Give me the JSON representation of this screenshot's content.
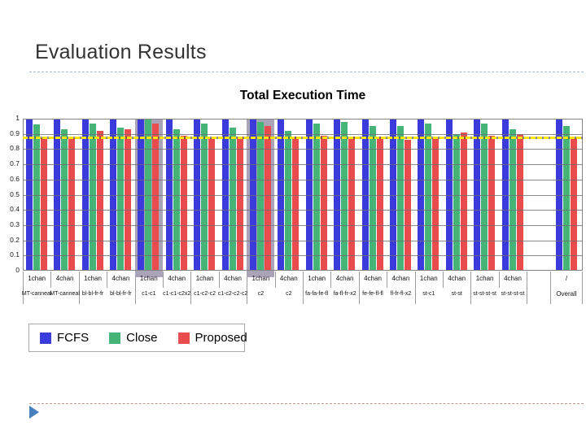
{
  "slide": {
    "title": "Evaluation Results"
  },
  "decor": {
    "top_divider_color": "#a3b8ca",
    "bottom_divider_color": "#bc9591",
    "arrow_color": "#4a7fbe"
  },
  "chart_data": {
    "type": "bar",
    "title": "Total Execution Time",
    "xlabel": "",
    "ylabel": "",
    "ylim": [
      0,
      1
    ],
    "grid": true,
    "legend_position": "bottom-left",
    "yticks": [
      "1",
      "0.9",
      "0.8",
      "0.7",
      "0.6",
      "0.5",
      "0.4",
      "0.3",
      "0.2",
      "0.1",
      "0"
    ],
    "series": [
      {
        "name": "FCFS",
        "color": "#3b3bdb"
      },
      {
        "name": "Close",
        "color": "#46b377"
      },
      {
        "name": "Proposed",
        "color": "#e94c4c"
      }
    ],
    "baseline": {
      "value": 0.875,
      "color": "#ffe600",
      "style": "dashed"
    },
    "grid_color": "#6e6e6e",
    "highlight_color": "#aaa4b8",
    "groups": [
      {
        "chan": "1chan",
        "mix": "MT-canneal",
        "values": [
          1,
          0.96,
          0.87
        ],
        "highlight": false
      },
      {
        "chan": "4chan",
        "mix": "MT-canneal",
        "values": [
          1,
          0.93,
          0.87
        ],
        "highlight": false
      },
      {
        "chan": "1chan",
        "mix": "bl-bl-fr-fr",
        "values": [
          1,
          0.97,
          0.92
        ],
        "highlight": false
      },
      {
        "chan": "4chan",
        "mix": "bl-bl-fr-fr",
        "values": [
          1,
          0.94,
          0.93
        ],
        "highlight": false
      },
      {
        "chan": "1chan",
        "mix": "c1-c1",
        "values": [
          1,
          1.0,
          0.97
        ],
        "highlight": true
      },
      {
        "chan": "4chan",
        "mix": "c1-c1-c2x2",
        "values": [
          1,
          0.93,
          0.89
        ],
        "highlight": false
      },
      {
        "chan": "1chan",
        "mix": "c1-c2-c2",
        "values": [
          1,
          0.97,
          0.87
        ],
        "highlight": false
      },
      {
        "chan": "4chan",
        "mix": "c1-c2-c2-c2",
        "values": [
          1,
          0.94,
          0.88
        ],
        "highlight": false
      },
      {
        "chan": "1chan",
        "mix": "c2",
        "values": [
          1,
          0.98,
          0.95
        ],
        "highlight": true
      },
      {
        "chan": "4chan",
        "mix": "c2",
        "values": [
          1,
          0.92,
          0.88
        ],
        "highlight": false
      },
      {
        "chan": "1chan",
        "mix": "fa-fa-fe-fl",
        "values": [
          1,
          0.97,
          0.89
        ],
        "highlight": false
      },
      {
        "chan": "4chan",
        "mix": "fa-fl-fr-x2",
        "values": [
          1,
          0.98,
          0.88
        ],
        "highlight": false
      },
      {
        "chan": "4chan",
        "mix": "fe-fe-fl-fl",
        "values": [
          1,
          0.95,
          0.88
        ],
        "highlight": false
      },
      {
        "chan": "4chan",
        "mix": "fl-fr-fl-x2",
        "values": [
          1,
          0.95,
          0.86
        ],
        "highlight": false
      },
      {
        "chan": "1chan",
        "mix": "st-c1",
        "values": [
          1,
          0.97,
          0.87
        ],
        "highlight": false
      },
      {
        "chan": "4chan",
        "mix": "st-st",
        "values": [
          1,
          0.9,
          0.91
        ],
        "highlight": false
      },
      {
        "chan": "1chan",
        "mix": "st-st-st-st",
        "values": [
          1,
          0.97,
          0.89
        ],
        "highlight": false
      },
      {
        "chan": "4chan",
        "mix": "st-st-st-st",
        "values": [
          1,
          0.93,
          0.9
        ],
        "highlight": false
      },
      {
        "chan": "/",
        "mix": "Overall",
        "values": [
          1,
          0.95,
          0.87
        ],
        "highlight": false,
        "overall": true
      }
    ]
  }
}
